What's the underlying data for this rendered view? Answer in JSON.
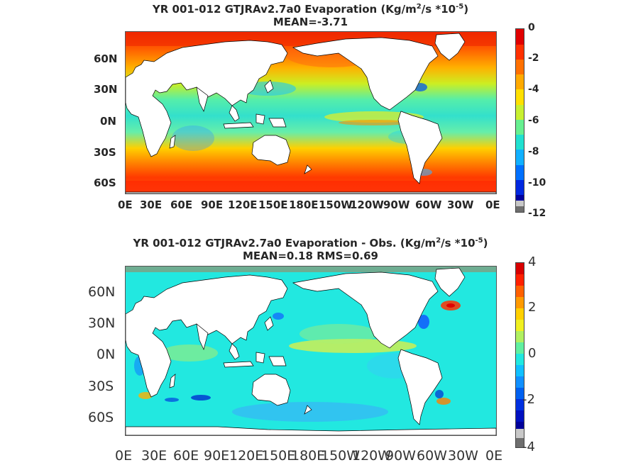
{
  "panel1": {
    "title_pre": "YR 001-012 GTJRAv2.7a0  Evaporation (Kg/m",
    "title_sup1": "2",
    "title_mid": "/s *10",
    "title_sup2": "-5",
    "title_post": ")",
    "subtitle": "MEAN=-3.71",
    "lat_ticks": [
      "60N",
      "30N",
      "0N",
      "30S",
      "60S"
    ],
    "lon_ticks": [
      "0E",
      "30E",
      "60E",
      "90E",
      "120E",
      "150E",
      "180E",
      "150W",
      "120W",
      "90W",
      "60W",
      "30W",
      "0E"
    ],
    "colorbar_ticks": [
      "0",
      "-2",
      "-4",
      "-6",
      "-8",
      "-10",
      "-12"
    ]
  },
  "panel2": {
    "title_pre": "YR 001-012 GTJRAv2.7a0 Evaporation - Obs. (Kg/m",
    "title_sup1": "2",
    "title_mid": "/s *10",
    "title_sup2": "-5",
    "title_post": ")",
    "subtitle": "MEAN=0.18   RMS=0.69",
    "lat_ticks": [
      "60N",
      "30N",
      "0N",
      "30S",
      "60S"
    ],
    "lon_ticks": [
      "0E",
      "30E",
      "60E",
      "90E",
      "120E",
      "150E",
      "180E",
      "150W",
      "120W",
      "90W",
      "60W",
      "30W",
      "0E"
    ],
    "colorbar_ticks": [
      "4",
      "2",
      "0",
      "-2",
      "-4"
    ]
  },
  "colors": {
    "land": "#ffffff",
    "coast": "#000000",
    "missing_bin": "#c8c8c8",
    "below_min_bin": "#6e6e6e"
  }
}
